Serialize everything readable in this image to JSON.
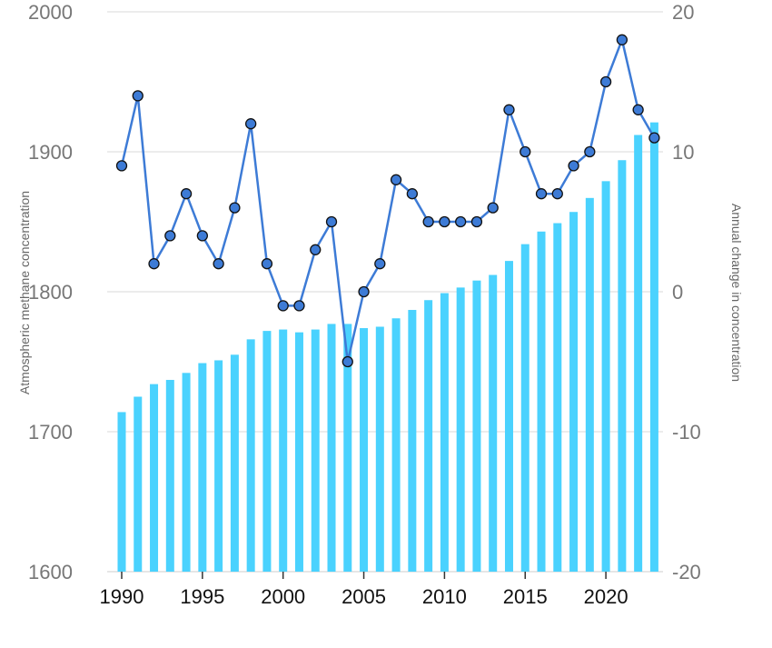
{
  "chart_data": {
    "type": "bar+line",
    "title": "",
    "xlabel": "",
    "ylabel_left": "Atmospheric methane concentration",
    "ylabel_right": "Annual change in concentration",
    "ylim_left": [
      1600,
      2000
    ],
    "ylim_right": [
      -20,
      20
    ],
    "yticks_left": [
      1600,
      1700,
      1800,
      1900,
      2000
    ],
    "yticks_right": [
      -20,
      -10,
      0,
      10,
      20
    ],
    "xticks": [
      1990,
      1995,
      2000,
      2005,
      2010,
      2015,
      2020
    ],
    "grid": true,
    "legend": "none",
    "x": [
      1990,
      1991,
      1992,
      1993,
      1994,
      1995,
      1996,
      1997,
      1998,
      1999,
      2000,
      2001,
      2002,
      2003,
      2004,
      2005,
      2006,
      2007,
      2008,
      2009,
      2010,
      2011,
      2012,
      2013,
      2014,
      2015,
      2016,
      2017,
      2018,
      2019,
      2020,
      2021,
      2022,
      2023
    ],
    "series": [
      {
        "kind": "bar",
        "axis": "left",
        "color": "#4ad2fe",
        "values": [
          1714,
          1725,
          1734,
          1737,
          1742,
          1749,
          1751,
          1755,
          1766,
          1772,
          1773,
          1771,
          1773,
          1777,
          1777,
          1774,
          1775,
          1781,
          1787,
          1794,
          1799,
          1803,
          1808,
          1812,
          1822,
          1834,
          1843,
          1849,
          1857,
          1867,
          1879,
          1894,
          1912,
          1921
        ]
      },
      {
        "kind": "line",
        "axis": "right",
        "color": "#3d7bd6",
        "values": [
          9,
          14,
          2,
          4,
          7,
          4,
          2,
          6,
          12,
          2,
          -1,
          -1,
          3,
          5,
          -5,
          0,
          2,
          8,
          7,
          5,
          5,
          5,
          5,
          6,
          13,
          10,
          7,
          7,
          9,
          10,
          15,
          18,
          13,
          11
        ]
      }
    ]
  }
}
